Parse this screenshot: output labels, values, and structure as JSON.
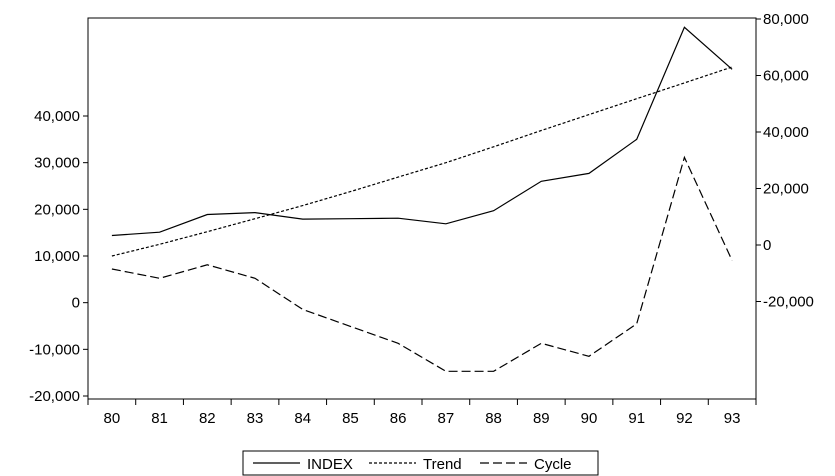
{
  "chart_data": {
    "type": "line",
    "title": "",
    "xlabel": "",
    "ylabel": "",
    "categories": [
      "80",
      "81",
      "82",
      "83",
      "84",
      "85",
      "86",
      "87",
      "88",
      "89",
      "90",
      "91",
      "92",
      "93"
    ],
    "left_axis": {
      "ylim": [
        -20000,
        60000
      ],
      "ticks": [
        -20000,
        -10000,
        0,
        10000,
        20000,
        30000,
        40000
      ],
      "tick_labels": [
        "-20,000",
        "-10,000",
        "0",
        "10,000",
        "20,000",
        "30,000",
        "40,000"
      ]
    },
    "right_axis": {
      "ylim": [
        -60000,
        80000
      ],
      "ticks": [
        -20000,
        0,
        20000,
        40000,
        60000,
        80000
      ],
      "tick_labels": [
        "-20,000",
        "0",
        "20,000",
        "40,000",
        "60,000",
        "80,000"
      ]
    },
    "series": [
      {
        "name": "INDEX",
        "axis": "left",
        "style": "solid",
        "values": [
          14400,
          15100,
          18900,
          19300,
          17900,
          18000,
          18100,
          16900,
          19700,
          26000,
          27700,
          35000,
          59000,
          50000
        ]
      },
      {
        "name": "Trend",
        "axis": "left",
        "style": "short-dash",
        "values": [
          10000,
          12500,
          15200,
          18000,
          20800,
          23800,
          26900,
          30000,
          33400,
          36900,
          40300,
          43700,
          47100,
          50500
        ]
      },
      {
        "name": "Cycle",
        "axis": "right",
        "style": "long-dash",
        "values": [
          -8500,
          -11800,
          -7000,
          -11800,
          -22800,
          -28800,
          -34800,
          -44700,
          -44700,
          -34800,
          -39400,
          -27900,
          31000,
          -5500
        ]
      }
    ],
    "grid": false,
    "legend_position": "bottom-center",
    "colors": {
      "line": "#000000",
      "background": "#ffffff"
    }
  }
}
